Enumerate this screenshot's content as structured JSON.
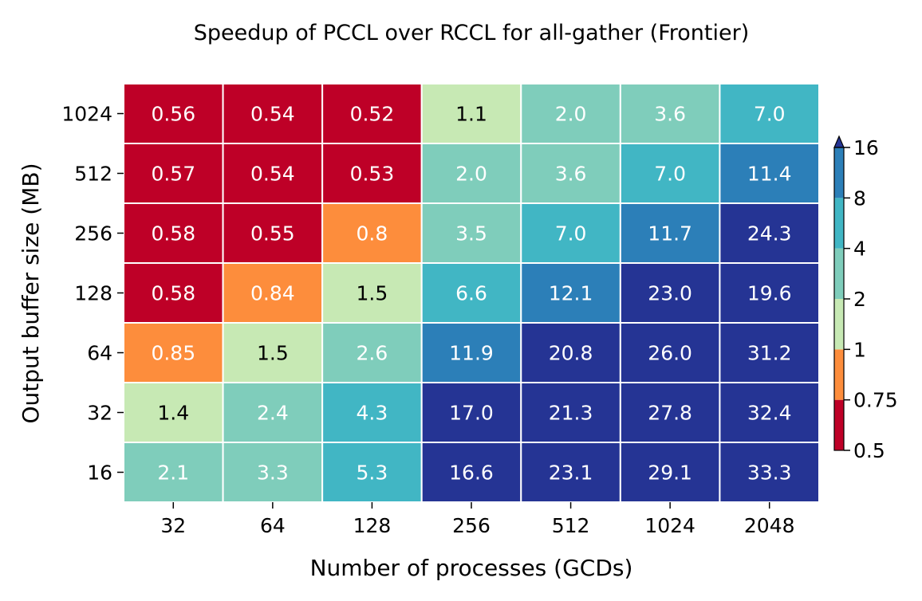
{
  "chart_data": {
    "type": "heatmap",
    "title": "Speedup of PCCL over RCCL for all-gather (Frontier)",
    "xlabel": "Number of processes (GCDs)",
    "ylabel": "Output buffer size (MB)",
    "x_categories": [
      "32",
      "64",
      "128",
      "256",
      "512",
      "1024",
      "2048"
    ],
    "y_categories": [
      "1024",
      "512",
      "256",
      "128",
      "64",
      "32",
      "16"
    ],
    "values": [
      [
        0.56,
        0.54,
        0.52,
        1.1,
        2.0,
        3.6,
        7.0
      ],
      [
        0.57,
        0.54,
        0.53,
        2.0,
        3.6,
        7.0,
        11.4
      ],
      [
        0.58,
        0.55,
        0.8,
        3.5,
        7.0,
        11.7,
        24.3
      ],
      [
        0.58,
        0.84,
        1.5,
        6.6,
        12.1,
        23.0,
        19.6
      ],
      [
        0.85,
        1.5,
        2.6,
        11.9,
        20.8,
        26.0,
        31.2
      ],
      [
        1.4,
        2.4,
        4.3,
        17.0,
        21.3,
        27.8,
        32.4
      ],
      [
        2.1,
        3.3,
        5.3,
        16.6,
        23.1,
        29.1,
        33.3
      ]
    ],
    "labels": [
      [
        "0.56",
        "0.54",
        "0.52",
        "1.1",
        "2.0",
        "3.6",
        "7.0"
      ],
      [
        "0.57",
        "0.54",
        "0.53",
        "2.0",
        "3.6",
        "7.0",
        "11.4"
      ],
      [
        "0.58",
        "0.55",
        "0.8",
        "3.5",
        "7.0",
        "11.7",
        "24.3"
      ],
      [
        "0.58",
        "0.84",
        "1.5",
        "6.6",
        "12.1",
        "23.0",
        "19.6"
      ],
      [
        "0.85",
        "1.5",
        "2.6",
        "11.9",
        "20.8",
        "26.0",
        "31.2"
      ],
      [
        "1.4",
        "2.4",
        "4.3",
        "17.0",
        "21.3",
        "27.8",
        "32.4"
      ],
      [
        "2.1",
        "3.3",
        "5.3",
        "16.6",
        "23.1",
        "29.1",
        "33.3"
      ]
    ],
    "colorbar": {
      "boundaries": [
        0.5,
        0.75,
        1,
        2,
        4,
        8,
        16
      ],
      "tick_labels": [
        "0.5",
        "0.75",
        "1",
        "2",
        "4",
        "8",
        "16"
      ],
      "colors": [
        "#be0027",
        "#fd8d3c",
        "#c7e9b4",
        "#7fcdbb",
        "#41b6c4",
        "#2c7fb8",
        "#253494"
      ],
      "extend": "max",
      "placement": "right"
    },
    "dark_text_color": "#000000",
    "light_text_color": "#ffffff"
  }
}
